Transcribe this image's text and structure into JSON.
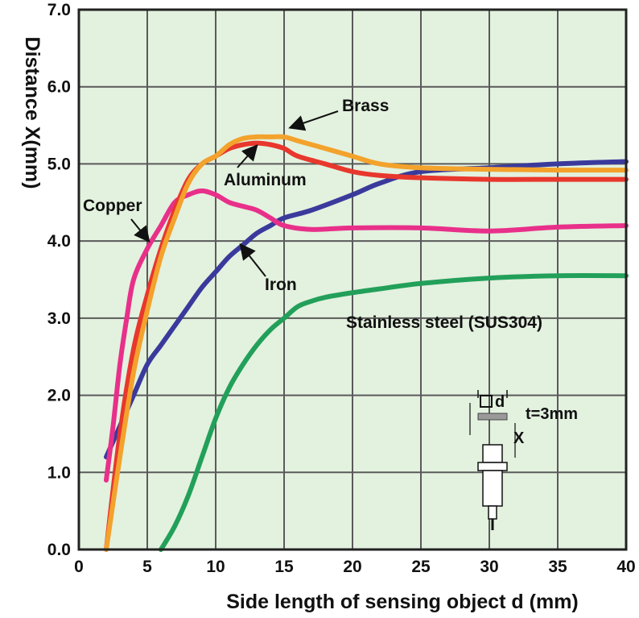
{
  "chart_data": {
    "type": "line",
    "xlabel": "Side length of sensing object d (mm)",
    "ylabel": "Distance X(mm)",
    "xlim": [
      0,
      40
    ],
    "ylim": [
      0,
      7
    ],
    "x_ticks": [
      0,
      5,
      10,
      15,
      20,
      25,
      30,
      35,
      40
    ],
    "y_ticks": [
      "0.0",
      "1.0",
      "2.0",
      "3.0",
      "4.0",
      "5.0",
      "6.0",
      "7.0"
    ],
    "grid": true,
    "background_color": "#e3f1df",
    "series": [
      {
        "name": "Copper",
        "color": "#e8308a",
        "label_arrow": true,
        "x": [
          2,
          2.5,
          3,
          3.5,
          4,
          5,
          6,
          7,
          8,
          9,
          10,
          11,
          12,
          13,
          14,
          15,
          17,
          20,
          25,
          30,
          35,
          40
        ],
        "y": [
          0.9,
          1.6,
          2.4,
          3.0,
          3.5,
          3.9,
          4.2,
          4.5,
          4.6,
          4.65,
          4.6,
          4.5,
          4.45,
          4.4,
          4.3,
          4.2,
          4.15,
          4.17,
          4.17,
          4.13,
          4.18,
          4.2
        ]
      },
      {
        "name": "Aluminum",
        "color": "#e8372c",
        "label_arrow": true,
        "x": [
          2,
          3,
          4,
          5,
          6,
          7,
          8,
          9,
          10,
          11,
          12,
          13,
          14,
          15,
          16,
          18,
          20,
          22,
          25,
          30,
          35,
          40
        ],
        "y": [
          0.0,
          1.5,
          2.6,
          3.3,
          3.9,
          4.4,
          4.8,
          5.0,
          5.1,
          5.2,
          5.25,
          5.27,
          5.25,
          5.2,
          5.1,
          5.0,
          4.9,
          4.85,
          4.82,
          4.8,
          4.8,
          4.8
        ]
      },
      {
        "name": "Brass",
        "color": "#f3a22c",
        "label_arrow": true,
        "x": [
          2,
          3,
          4,
          5,
          6,
          7,
          8,
          9,
          10,
          11,
          12,
          13,
          14,
          15,
          16,
          18,
          20,
          22,
          25,
          30,
          35,
          40
        ],
        "y": [
          0.0,
          1.2,
          2.3,
          3.1,
          3.8,
          4.3,
          4.75,
          5.0,
          5.1,
          5.25,
          5.33,
          5.35,
          5.35,
          5.35,
          5.3,
          5.2,
          5.1,
          5.0,
          4.95,
          4.93,
          4.92,
          4.92
        ]
      },
      {
        "name": "Iron",
        "color": "#3a3a9c",
        "label_arrow": true,
        "x": [
          2,
          3,
          4,
          5,
          6,
          7,
          8,
          9,
          10,
          11,
          12,
          13,
          14,
          15,
          17,
          20,
          22,
          25,
          30,
          35,
          40
        ],
        "y": [
          1.2,
          1.6,
          2.0,
          2.4,
          2.65,
          2.9,
          3.15,
          3.4,
          3.6,
          3.8,
          3.95,
          4.1,
          4.2,
          4.3,
          4.4,
          4.6,
          4.75,
          4.9,
          4.95,
          5.0,
          5.03
        ]
      },
      {
        "name": "Stainless steel (SUS304)",
        "color": "#22a05a",
        "label_arrow": false,
        "x": [
          6,
          7,
          8,
          9,
          10,
          11,
          12,
          13,
          14,
          15,
          16,
          17,
          18,
          20,
          22,
          25,
          30,
          35,
          40
        ],
        "y": [
          0.0,
          0.3,
          0.7,
          1.2,
          1.7,
          2.1,
          2.4,
          2.65,
          2.85,
          3.0,
          3.15,
          3.22,
          3.27,
          3.33,
          3.38,
          3.45,
          3.52,
          3.55,
          3.55
        ]
      }
    ]
  },
  "inset": {
    "d_label": "d",
    "t_label": "t=3mm",
    "x_label": "X"
  }
}
